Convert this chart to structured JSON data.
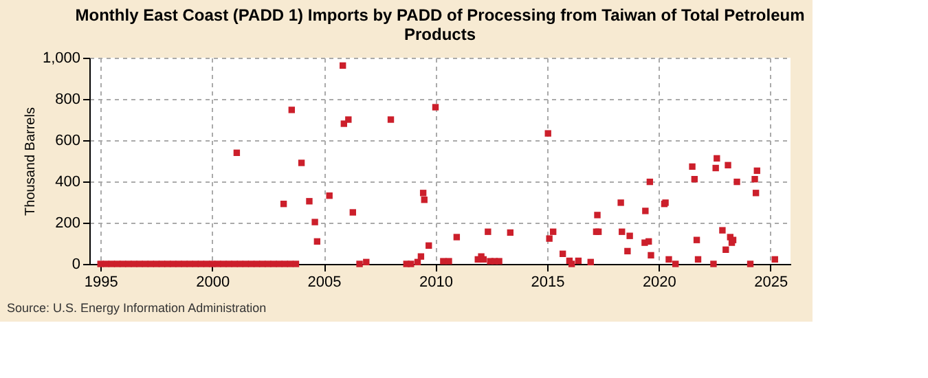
{
  "chart_data": {
    "type": "scatter",
    "title": "Monthly East Coast (PADD 1) Imports by PADD of Processing from Taiwan of Total Petroleum Products",
    "ylabel": "Thousand Barrels",
    "annotations": [
      "Source: U.S. Energy Information Administration"
    ],
    "x": [
      1995.0,
      1995.25,
      1995.5,
      1995.75,
      1996.0,
      1996.25,
      1996.5,
      1996.75,
      1997.0,
      1997.25,
      1997.5,
      1997.75,
      1998.0,
      1998.25,
      1998.5,
      1998.75,
      1999.0,
      1999.25,
      1999.5,
      1999.75,
      2000.0,
      2000.25,
      2000.5,
      2000.75,
      2001.0,
      2001.1,
      2001.25,
      2001.5,
      2001.75,
      2002.0,
      2002.25,
      2002.5,
      2002.75,
      2003.0,
      2003.2,
      2003.25,
      2003.5,
      2003.56,
      2003.75,
      2004.0,
      2004.35,
      2004.6,
      2004.7,
      2005.25,
      2005.85,
      2005.9,
      2006.1,
      2006.3,
      2006.6,
      2006.9,
      2008.0,
      2008.7,
      2008.9,
      2009.2,
      2009.35,
      2009.45,
      2009.5,
      2009.7,
      2010.0,
      2010.35,
      2010.6,
      2010.95,
      2011.9,
      2012.05,
      2012.15,
      2012.35,
      2012.45,
      2012.65,
      2012.85,
      2013.35,
      2015.04,
      2015.1,
      2015.27,
      2015.7,
      2016.0,
      2016.1,
      2016.4,
      2016.95,
      2017.2,
      2017.25,
      2017.3,
      2018.3,
      2018.35,
      2018.6,
      2018.7,
      2019.37,
      2019.4,
      2019.55,
      2019.6,
      2019.65,
      2020.25,
      2020.3,
      2020.45,
      2020.75,
      2021.5,
      2021.6,
      2021.7,
      2021.76,
      2022.45,
      2022.55,
      2022.6,
      2022.85,
      2023.0,
      2023.1,
      2023.2,
      2023.27,
      2023.33,
      2023.5,
      2024.1,
      2024.3,
      2024.35,
      2024.4,
      2025.2
    ],
    "series": [
      {
        "color": "#cc1f2b",
        "values": [
          0,
          0,
          0,
          0,
          0,
          0,
          0,
          0,
          0,
          0,
          0,
          0,
          0,
          0,
          0,
          0,
          0,
          0,
          0,
          0,
          0,
          0,
          0,
          0,
          0,
          539,
          0,
          0,
          0,
          0,
          0,
          0,
          0,
          0,
          291,
          0,
          0,
          747,
          0,
          490,
          304,
          203,
          109,
          331,
          962,
          680,
          700,
          250,
          0,
          9,
          700,
          0,
          0,
          9,
          36,
          344,
          311,
          89,
          760,
          13,
          13,
          130,
          22,
          36,
          22,
          156,
          13,
          13,
          13,
          152,
          633,
          123,
          156,
          49,
          15,
          0,
          15,
          9,
          156,
          237,
          156,
          297,
          156,
          62,
          136,
          103,
          257,
          109,
          398,
          42,
          291,
          297,
          22,
          0,
          472,
          411,
          116,
          22,
          0,
          465,
          512,
          163,
          69,
          479,
          130,
          103,
          116,
          398,
          0,
          411,
          344,
          452,
          22
        ]
      }
    ],
    "marker": "square",
    "grid": true,
    "legend": false,
    "xlim": [
      1994.5,
      2025.9
    ],
    "xticks": [
      1995,
      2000,
      2005,
      2010,
      2015,
      2020,
      2025
    ],
    "ylim": [
      0,
      1000
    ],
    "yticks": [
      0,
      200,
      400,
      600,
      800,
      {
        "value": 1000,
        "label": "1,000"
      }
    ]
  }
}
